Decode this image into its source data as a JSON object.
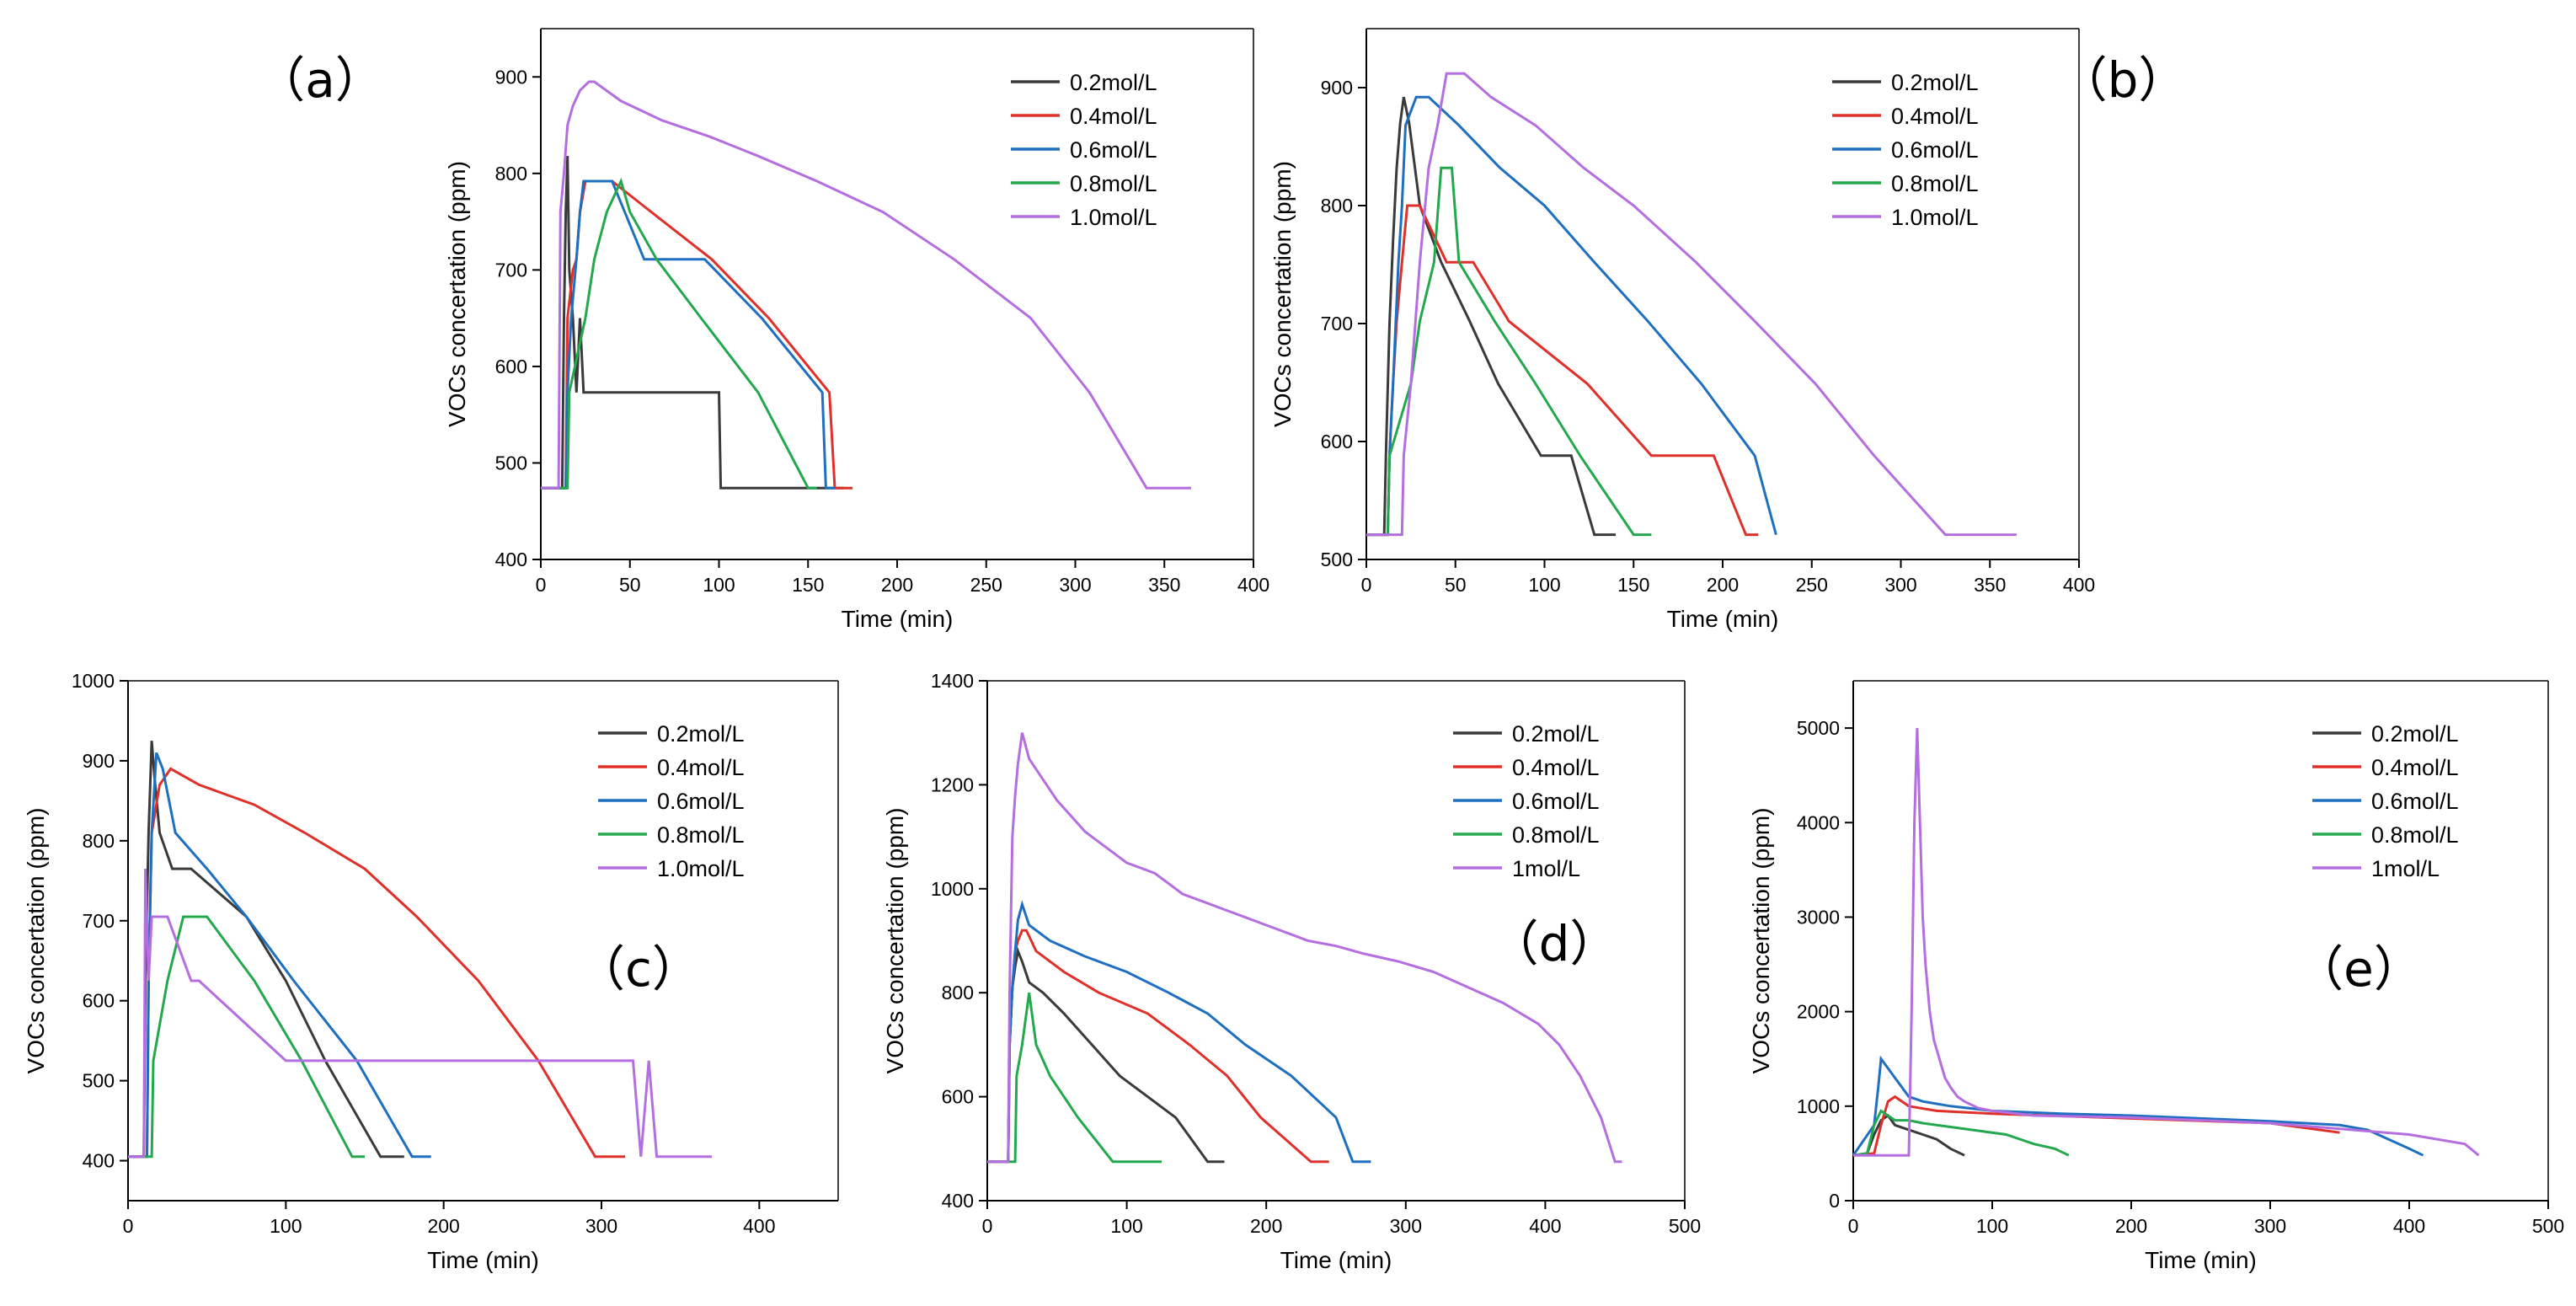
{
  "series_colors": [
    "#3a3a3a",
    "#e0302a",
    "#1f6fc1",
    "#24a84d",
    "#b46ee0"
  ],
  "chart_data": [
    {
      "type": "line",
      "panel_label": "（a）",
      "xlabel": "Time (min)",
      "ylabel": "VOCs concertation (ppm)",
      "xlim": [
        0,
        400
      ],
      "ylim": [
        400,
        950
      ],
      "xticks": [
        0,
        50,
        100,
        150,
        200,
        250,
        300,
        350,
        400
      ],
      "yticks": [
        400,
        500,
        600,
        700,
        800,
        900
      ],
      "legend_position": "top-right",
      "series": [
        {
          "name": "0.2mol/L",
          "x": [
            0,
            12,
            13,
            14,
            15,
            16,
            18,
            20,
            22,
            24,
            100,
            101,
            102,
            170
          ],
          "y": [
            474,
            474,
            650,
            760,
            818,
            700,
            650,
            573,
            650,
            573,
            573,
            474,
            474,
            474
          ]
        },
        {
          "name": "0.4mol/L",
          "x": [
            0,
            14,
            15,
            18,
            20,
            22,
            25,
            40,
            62,
            96,
            128,
            162,
            165,
            175
          ],
          "y": [
            474,
            474,
            650,
            700,
            711,
            760,
            792,
            792,
            760,
            711,
            650,
            573,
            474,
            474
          ]
        },
        {
          "name": "0.6mol/L",
          "x": [
            0,
            14,
            15,
            17,
            20,
            22,
            24,
            40,
            58,
            92,
            124,
            158,
            160,
            165
          ],
          "y": [
            474,
            474,
            573,
            650,
            711,
            760,
            792,
            792,
            711,
            711,
            650,
            573,
            474,
            474
          ]
        },
        {
          "name": "0.8mol/L",
          "x": [
            0,
            15,
            16,
            25,
            30,
            37,
            45,
            50,
            65,
            90,
            122,
            150,
            152,
            155
          ],
          "y": [
            474,
            474,
            573,
            650,
            711,
            760,
            792,
            760,
            711,
            650,
            573,
            474,
            474,
            474
          ]
        },
        {
          "name": "1.0mol/L",
          "x": [
            0,
            10,
            11,
            13,
            15,
            18,
            22,
            27,
            30,
            45,
            68,
            95,
            122,
            155,
            192,
            232,
            275,
            308,
            340,
            365
          ],
          "y": [
            474,
            474,
            760,
            800,
            850,
            870,
            886,
            895,
            895,
            875,
            855,
            838,
            818,
            792,
            760,
            711,
            650,
            573,
            474,
            474
          ]
        }
      ]
    },
    {
      "type": "line",
      "panel_label": "（b）",
      "xlabel": "Time (min)",
      "ylabel": "VOCs concertation (ppm)",
      "xlim": [
        0,
        400
      ],
      "ylim": [
        500,
        950
      ],
      "xticks": [
        0,
        50,
        100,
        150,
        200,
        250,
        300,
        350,
        400
      ],
      "yticks": [
        500,
        600,
        700,
        800,
        900
      ],
      "legend_position": "top-right",
      "series": [
        {
          "name": "0.2mol/L",
          "x": [
            0,
            10,
            11,
            13,
            15,
            17,
            19,
            21,
            24,
            30,
            42,
            58,
            74,
            98,
            115,
            128,
            140
          ],
          "y": [
            521,
            521,
            590,
            700,
            770,
            832,
            870,
            892,
            870,
            800,
            752,
            702,
            649,
            588,
            588,
            521,
            521
          ]
        },
        {
          "name": "0.4mol/L",
          "x": [
            0,
            12,
            13,
            15,
            17,
            20,
            23,
            26,
            30,
            45,
            60,
            80,
            124,
            160,
            195,
            213,
            220
          ],
          "y": [
            521,
            521,
            588,
            649,
            702,
            752,
            800,
            800,
            800,
            752,
            752,
            702,
            649,
            588,
            588,
            521,
            521
          ]
        },
        {
          "name": "0.6mol/L",
          "x": [
            0,
            12,
            13,
            15,
            18,
            20,
            22,
            28,
            35,
            52,
            75,
            100,
            128,
            158,
            188,
            218,
            230
          ],
          "y": [
            521,
            521,
            588,
            649,
            752,
            800,
            868,
            892,
            892,
            868,
            832,
            800,
            752,
            702,
            649,
            588,
            521
          ]
        },
        {
          "name": "0.8mol/L",
          "x": [
            0,
            12,
            13,
            25,
            30,
            38,
            42,
            48,
            52,
            72,
            95,
            120,
            150,
            160
          ],
          "y": [
            521,
            521,
            588,
            649,
            702,
            752,
            832,
            832,
            752,
            702,
            649,
            588,
            521,
            521
          ]
        },
        {
          "name": "1.0mol/L",
          "x": [
            0,
            20,
            21,
            25,
            30,
            35,
            40,
            45,
            55,
            70,
            95,
            122,
            150,
            185,
            218,
            252,
            285,
            325,
            365
          ],
          "y": [
            521,
            521,
            588,
            649,
            752,
            832,
            868,
            912,
            912,
            892,
            868,
            832,
            800,
            752,
            702,
            649,
            588,
            521,
            521
          ]
        }
      ]
    },
    {
      "type": "line",
      "panel_label": "（c）",
      "xlabel": "Time (min)",
      "ylabel": "VOCs concertation (ppm)",
      "xlim": [
        0,
        450
      ],
      "ylim": [
        350,
        1000
      ],
      "xticks": [
        0,
        100,
        200,
        300,
        400
      ],
      "yticks": [
        400,
        500,
        600,
        700,
        800,
        900,
        1000
      ],
      "legend_position": "top-right",
      "series": [
        {
          "name": "0.2mol/L",
          "x": [
            0,
            10,
            11,
            13,
            15,
            17,
            20,
            28,
            40,
            75,
            100,
            125,
            160,
            165,
            175
          ],
          "y": [
            405,
            405,
            625,
            810,
            925,
            875,
            810,
            765,
            765,
            705,
            625,
            525,
            405,
            405,
            405
          ]
        },
        {
          "name": "0.4mol/L",
          "x": [
            0,
            12,
            13,
            15,
            20,
            27,
            45,
            80,
            112,
            150,
            183,
            222,
            260,
            296,
            315
          ],
          "y": [
            405,
            405,
            625,
            810,
            870,
            890,
            870,
            845,
            810,
            765,
            705,
            625,
            525,
            405,
            405
          ]
        },
        {
          "name": "0.6mol/L",
          "x": [
            0,
            12,
            13,
            15,
            18,
            22,
            30,
            50,
            75,
            105,
            145,
            180,
            192
          ],
          "y": [
            405,
            405,
            625,
            810,
            910,
            890,
            810,
            765,
            705,
            625,
            525,
            405,
            405
          ]
        },
        {
          "name": "0.8mol/L",
          "x": [
            0,
            15,
            16,
            25,
            35,
            50,
            80,
            110,
            142,
            150
          ],
          "y": [
            405,
            405,
            525,
            625,
            705,
            705,
            625,
            525,
            405,
            405
          ]
        },
        {
          "name": "1.0mol/L",
          "x": [
            0,
            10,
            11,
            13,
            15,
            25,
            40,
            45,
            100,
            320,
            325,
            330,
            335,
            370
          ],
          "y": [
            405,
            405,
            765,
            625,
            705,
            705,
            625,
            625,
            525,
            525,
            405,
            525,
            405,
            405
          ]
        }
      ]
    },
    {
      "type": "line",
      "panel_label": "（d）",
      "xlabel": "Time (min)",
      "ylabel": "VOCs concertation (ppm)",
      "xlim": [
        0,
        500
      ],
      "ylim": [
        400,
        1400
      ],
      "xticks": [
        0,
        100,
        200,
        300,
        400,
        500
      ],
      "yticks": [
        400,
        600,
        800,
        1000,
        1200,
        1400
      ],
      "legend_position": "top-right",
      "series": [
        {
          "name": "0.2mol/L",
          "x": [
            0,
            15,
            16,
            18,
            20,
            22,
            25,
            30,
            40,
            55,
            75,
            95,
            115,
            135,
            158,
            170
          ],
          "y": [
            475,
            475,
            700,
            810,
            850,
            880,
            860,
            820,
            800,
            760,
            700,
            640,
            600,
            560,
            475,
            475
          ]
        },
        {
          "name": "0.4mol/L",
          "x": [
            0,
            15,
            16,
            18,
            20,
            22,
            25,
            28,
            35,
            55,
            80,
            115,
            145,
            172,
            196,
            232,
            245
          ],
          "y": [
            475,
            475,
            700,
            810,
            880,
            900,
            920,
            920,
            880,
            840,
            800,
            760,
            700,
            640,
            560,
            475,
            475
          ]
        },
        {
          "name": "0.6mol/L",
          "x": [
            0,
            15,
            16,
            18,
            20,
            22,
            25,
            30,
            45,
            70,
            100,
            130,
            158,
            185,
            218,
            250,
            262,
            275
          ],
          "y": [
            475,
            475,
            700,
            810,
            880,
            940,
            970,
            930,
            900,
            870,
            840,
            800,
            760,
            700,
            640,
            560,
            475,
            475
          ]
        },
        {
          "name": "0.8mol/L",
          "x": [
            0,
            20,
            21,
            25,
            30,
            35,
            45,
            65,
            90,
            115,
            125
          ],
          "y": [
            475,
            475,
            640,
            700,
            800,
            700,
            640,
            560,
            475,
            475,
            475
          ]
        },
        {
          "name": "1mol/L",
          "x": [
            0,
            15,
            16,
            18,
            20,
            22,
            25,
            30,
            40,
            50,
            60,
            70,
            80,
            90,
            100,
            110,
            120,
            130,
            140,
            155,
            170,
            185,
            200,
            215,
            230,
            250,
            270,
            295,
            320,
            345,
            370,
            395,
            410,
            425,
            440,
            450,
            455
          ],
          "y": [
            475,
            475,
            800,
            1100,
            1180,
            1240,
            1300,
            1250,
            1210,
            1170,
            1140,
            1110,
            1090,
            1070,
            1050,
            1040,
            1030,
            1010,
            990,
            975,
            960,
            945,
            930,
            915,
            900,
            890,
            875,
            860,
            840,
            810,
            780,
            740,
            700,
            640,
            560,
            475,
            475
          ]
        }
      ]
    },
    {
      "type": "line",
      "panel_label": "（e）",
      "xlabel": "Time (min)",
      "ylabel": "VOCs concertation (ppm)",
      "xlim": [
        0,
        500
      ],
      "ylim": [
        0,
        5500
      ],
      "xticks": [
        0,
        100,
        200,
        300,
        400,
        500
      ],
      "yticks": [
        0,
        1000,
        2000,
        3000,
        4000,
        5000
      ],
      "legend_position": "top-right",
      "series": [
        {
          "name": "0.2mol/L",
          "x": [
            0,
            10,
            15,
            20,
            25,
            30,
            40,
            50,
            60,
            70,
            80
          ],
          "y": [
            480,
            500,
            700,
            850,
            900,
            800,
            750,
            700,
            650,
            550,
            480
          ]
        },
        {
          "name": "0.4mol/L",
          "x": [
            0,
            15,
            20,
            25,
            30,
            40,
            60,
            100,
            200,
            300,
            350
          ],
          "y": [
            480,
            500,
            800,
            1050,
            1100,
            1000,
            950,
            920,
            870,
            820,
            720
          ]
        },
        {
          "name": "0.6mol/L",
          "x": [
            0,
            15,
            18,
            20,
            25,
            30,
            35,
            40,
            50,
            70,
            100,
            150,
            200,
            250,
            300,
            350,
            370,
            400,
            410
          ],
          "y": [
            480,
            800,
            1200,
            1500,
            1400,
            1300,
            1200,
            1100,
            1050,
            1000,
            950,
            920,
            900,
            870,
            840,
            800,
            750,
            550,
            480
          ]
        },
        {
          "name": "0.8mol/L",
          "x": [
            0,
            10,
            15,
            20,
            25,
            30,
            40,
            50,
            70,
            90,
            110,
            130,
            145,
            155
          ],
          "y": [
            480,
            500,
            800,
            950,
            900,
            850,
            850,
            820,
            780,
            740,
            700,
            600,
            550,
            480
          ]
        },
        {
          "name": "1mol/L",
          "x": [
            0,
            40,
            42,
            44,
            46,
            48,
            50,
            52,
            55,
            58,
            62,
            66,
            70,
            75,
            80,
            90,
            100,
            130,
            200,
            300,
            400,
            440,
            450
          ],
          "y": [
            480,
            480,
            2000,
            4000,
            5000,
            4000,
            3000,
            2500,
            2000,
            1700,
            1500,
            1300,
            1200,
            1100,
            1050,
            980,
            950,
            900,
            880,
            820,
            700,
            600,
            480
          ]
        }
      ]
    }
  ]
}
